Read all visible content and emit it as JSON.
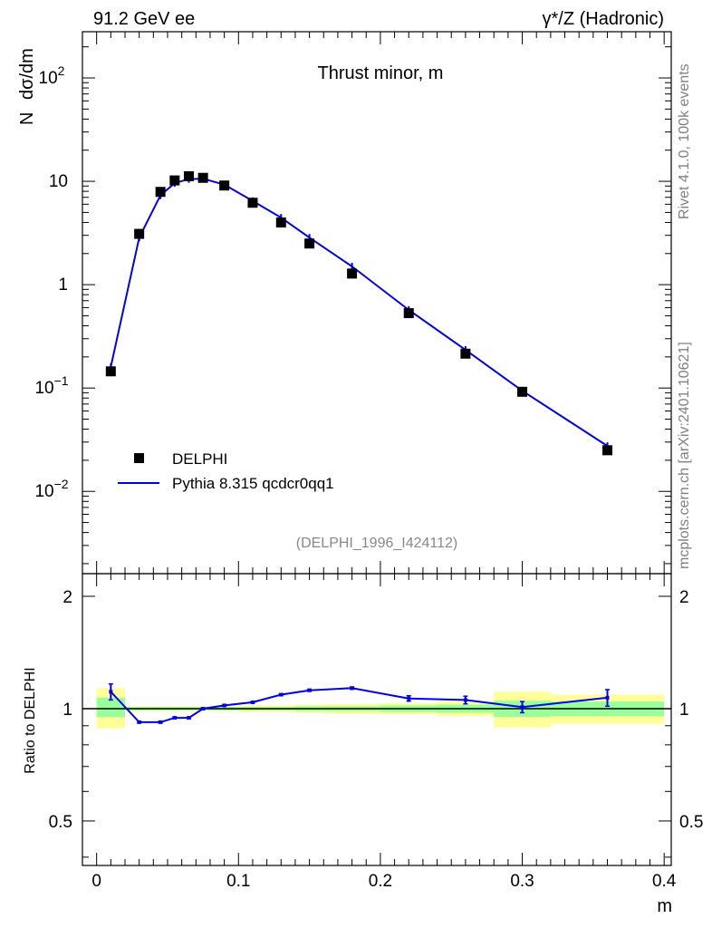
{
  "header": {
    "left": "91.2 GeV ee",
    "right": "γ*/Z (Hadronic)"
  },
  "side_labels": {
    "rivet": "Rivet 4.1.0,  100k events",
    "mcplots": "mcplots.cern.ch [arXiv:2401.10621]"
  },
  "chart_data": [
    {
      "type": "scatter+line",
      "title": "Thrust minor, m",
      "ylabel_parts": [
        "N",
        "dσ/dm"
      ],
      "ylabel": "N  dσ/dm",
      "yscale": "log",
      "ylim": [
        0.0016,
        280
      ],
      "xlim": [
        -0.01,
        0.405
      ],
      "ytick_labels": [
        {
          "value": 100,
          "base": "10",
          "exp": "2"
        },
        {
          "value": 10,
          "base": "10",
          "exp": ""
        },
        {
          "value": 1,
          "base": "1",
          "exp": ""
        },
        {
          "value": 0.1,
          "base": "10",
          "exp": "−1"
        },
        {
          "value": 0.01,
          "base": "10",
          "exp": "−2"
        }
      ],
      "analysis_label": "(DELPHI_1996_I424112)",
      "legend": [
        {
          "name": "DELPHI",
          "marker": "square",
          "color": "#000000"
        },
        {
          "name": "Pythia 8.315 qcdcr0qq1",
          "marker": "line",
          "color": "#0000ee"
        }
      ],
      "series": [
        {
          "name": "DELPHI",
          "x": [
            0.01,
            0.03,
            0.045,
            0.055,
            0.065,
            0.075,
            0.09,
            0.11,
            0.13,
            0.15,
            0.18,
            0.22,
            0.26,
            0.3,
            0.36
          ],
          "values": [
            0.145,
            3.1,
            7.9,
            10.2,
            11.2,
            10.8,
            9.1,
            6.2,
            4.0,
            2.5,
            1.28,
            0.53,
            0.215,
            0.092,
            0.025
          ]
        },
        {
          "name": "Pythia 8.315 qcdcr0qq1",
          "x": [
            0.01,
            0.03,
            0.045,
            0.055,
            0.065,
            0.075,
            0.09,
            0.11,
            0.13,
            0.15,
            0.18,
            0.22,
            0.26,
            0.3,
            0.36
          ],
          "values": [
            0.16,
            2.85,
            7.3,
            9.6,
            10.5,
            10.6,
            9.3,
            6.45,
            4.45,
            2.85,
            1.5,
            0.57,
            0.234,
            0.094,
            0.0275
          ]
        }
      ]
    },
    {
      "type": "ratio",
      "ylabel": "Ratio to DELPHI",
      "xlabel": "m",
      "ylim": [
        0.38,
        2.3
      ],
      "yscale": "log",
      "xlim": [
        -0.01,
        0.405
      ],
      "ytick_labels": [
        {
          "value": 2,
          "label": "2"
        },
        {
          "value": 1,
          "label": "1"
        },
        {
          "value": 0.5,
          "label": "0.5"
        }
      ],
      "xtick_labels": [
        {
          "value": 0,
          "label": "0"
        },
        {
          "value": 0.1,
          "label": "0.1"
        },
        {
          "value": 0.2,
          "label": "0.2"
        },
        {
          "value": 0.3,
          "label": "0.3"
        },
        {
          "value": 0.4,
          "label": "0.4"
        }
      ],
      "bands": [
        {
          "x0": 0.0,
          "x1": 0.02,
          "inner": [
            0.95,
            1.07
          ],
          "outer": [
            0.885,
            1.135
          ]
        },
        {
          "x0": 0.02,
          "x1": 0.04,
          "inner": [
            0.99,
            1.01
          ],
          "outer": [
            0.985,
            1.015
          ]
        },
        {
          "x0": 0.04,
          "x1": 0.05,
          "inner": [
            0.99,
            1.01
          ],
          "outer": [
            0.985,
            1.015
          ]
        },
        {
          "x0": 0.05,
          "x1": 0.06,
          "inner": [
            0.99,
            1.01
          ],
          "outer": [
            0.985,
            1.015
          ]
        },
        {
          "x0": 0.06,
          "x1": 0.07,
          "inner": [
            0.99,
            1.01
          ],
          "outer": [
            0.985,
            1.015
          ]
        },
        {
          "x0": 0.07,
          "x1": 0.08,
          "inner": [
            0.99,
            1.01
          ],
          "outer": [
            0.985,
            1.015
          ]
        },
        {
          "x0": 0.08,
          "x1": 0.1,
          "inner": [
            0.99,
            1.01
          ],
          "outer": [
            0.985,
            1.015
          ]
        },
        {
          "x0": 0.1,
          "x1": 0.12,
          "inner": [
            0.99,
            1.01
          ],
          "outer": [
            0.98,
            1.02
          ]
        },
        {
          "x0": 0.12,
          "x1": 0.14,
          "inner": [
            0.99,
            1.01
          ],
          "outer": [
            0.98,
            1.02
          ]
        },
        {
          "x0": 0.14,
          "x1": 0.16,
          "inner": [
            0.985,
            1.015
          ],
          "outer": [
            0.975,
            1.025
          ]
        },
        {
          "x0": 0.16,
          "x1": 0.2,
          "inner": [
            0.985,
            1.015
          ],
          "outer": [
            0.97,
            1.03
          ]
        },
        {
          "x0": 0.2,
          "x1": 0.24,
          "inner": [
            0.98,
            1.02
          ],
          "outer": [
            0.965,
            1.035
          ]
        },
        {
          "x0": 0.24,
          "x1": 0.28,
          "inner": [
            0.975,
            1.025
          ],
          "outer": [
            0.955,
            1.045
          ]
        },
        {
          "x0": 0.28,
          "x1": 0.32,
          "inner": [
            0.95,
            1.05
          ],
          "outer": [
            0.89,
            1.11
          ]
        },
        {
          "x0": 0.32,
          "x1": 0.4,
          "inner": [
            0.955,
            1.045
          ],
          "outer": [
            0.91,
            1.09
          ]
        }
      ],
      "series": [
        {
          "name": "Pythia 8.315 qcdcr0qq1",
          "x": [
            0.01,
            0.03,
            0.045,
            0.055,
            0.065,
            0.075,
            0.09,
            0.11,
            0.13,
            0.15,
            0.18,
            0.22,
            0.26,
            0.3,
            0.36
          ],
          "values": [
            1.11,
            0.92,
            0.92,
            0.945,
            0.945,
            1.0,
            1.02,
            1.04,
            1.09,
            1.12,
            1.135,
            1.065,
            1.055,
            1.01,
            1.07
          ],
          "errors": [
            0.055,
            0.005,
            0.005,
            0.005,
            0.005,
            0.005,
            0.005,
            0.005,
            0.006,
            0.007,
            0.008,
            0.018,
            0.025,
            0.035,
            0.055
          ]
        }
      ]
    }
  ]
}
